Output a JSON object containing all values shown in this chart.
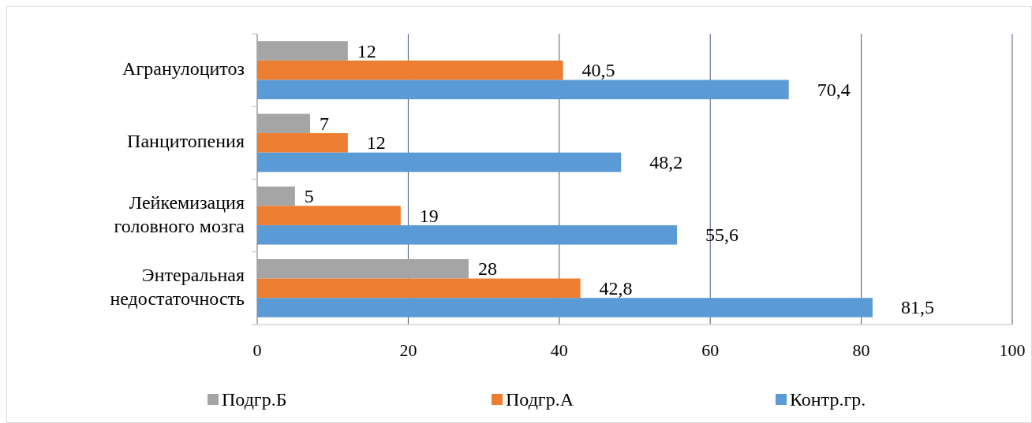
{
  "chart_data": {
    "type": "bar",
    "orientation": "horizontal",
    "categories": [
      "Агранулоцитоз",
      "Панцитопения",
      "Лейкемизация головного мозга",
      "Энтеральная недостаточность"
    ],
    "series": [
      {
        "name": "Подгр.Б",
        "color": "#a5a5a5",
        "values": [
          12,
          7,
          5,
          28
        ],
        "value_labels": [
          "12",
          "7",
          "5",
          "28"
        ]
      },
      {
        "name": "Подгр.А",
        "color": "#ed7d31",
        "values": [
          40.5,
          12,
          19,
          42.8
        ],
        "value_labels": [
          "40,5",
          "12",
          "19",
          "42,8"
        ]
      },
      {
        "name": "Контр.гр.",
        "color": "#5b9bd5",
        "values": [
          70.4,
          48.2,
          55.6,
          81.5
        ],
        "value_labels": [
          "70,4",
          "48,2",
          "55,6",
          "81,5"
        ]
      }
    ],
    "xlim": [
      0,
      100
    ],
    "xticks": [
      0,
      20,
      40,
      60,
      80,
      100
    ],
    "grid": "x",
    "legend": "bottom"
  }
}
